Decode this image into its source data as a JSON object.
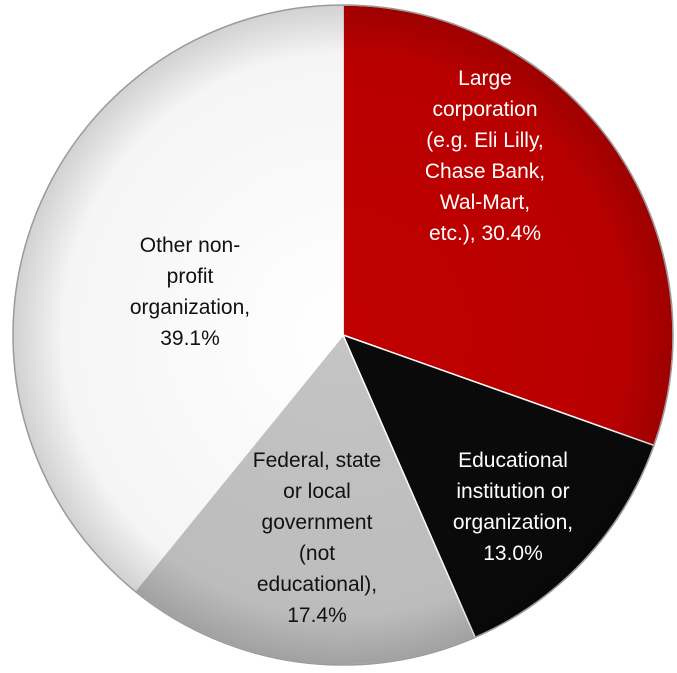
{
  "chart_data": {
    "type": "pie",
    "start_angle_deg": 0,
    "direction": "clockwise",
    "slices": [
      {
        "name": "Large corporation (e.g. Eli Lilly, Chase Bank, Wal-Mart, etc.)",
        "value": 30.4,
        "color": "#c00000",
        "label_color": "#ffffff",
        "label_lines": [
          "Large",
          "corporation",
          "(e.g. Eli Lilly,",
          "Chase Bank,",
          "Wal-Mart,",
          "etc.), 30.4%"
        ]
      },
      {
        "name": "Educational institution or organization",
        "value": 13.0,
        "color": "#0a0a0a",
        "label_color": "#ffffff",
        "label_lines": [
          "Educational",
          "institution or",
          "organization,",
          "13.0%"
        ]
      },
      {
        "name": "Federal, state or local government (not educational)",
        "value": 17.4,
        "color": "#c4c4c4",
        "label_color": "#111111",
        "label_lines": [
          "Federal, state",
          "or local",
          "government",
          "(not",
          "educational),",
          "17.4%"
        ]
      },
      {
        "name": "Other non-profit organization",
        "value": 39.1,
        "color": "#ffffff",
        "label_color": "#111111",
        "label_lines": [
          "Other non-",
          "profit",
          "organization,",
          "39.1%"
        ]
      }
    ]
  }
}
